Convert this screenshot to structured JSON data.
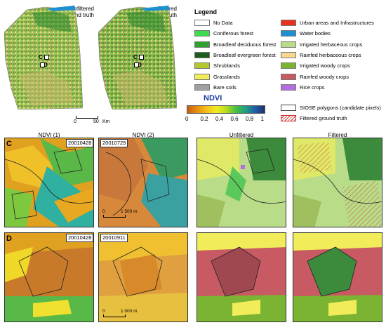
{
  "overview": {
    "unfiltered_title": "Unfiltered ground truth",
    "filtered_title": "Filtered ground truth",
    "point_c": "C",
    "point_d": "D",
    "scale_zero": "0",
    "scale_fifty": "50",
    "scale_unit": "Km"
  },
  "legend": {
    "title": "Legend",
    "items_left": [
      {
        "label": "No Data",
        "color": "#ffffff"
      },
      {
        "label": "Coniferous forest",
        "color": "#3cdc4c"
      },
      {
        "label": "Broadleaf deciduous forest",
        "color": "#2ea02e"
      },
      {
        "label": "Broadleaf evergreen forest",
        "color": "#1d5c1d"
      },
      {
        "label": "Shrublands",
        "color": "#b4c82a"
      },
      {
        "label": "Grasslands",
        "color": "#f0ec5a"
      },
      {
        "label": "Bare soils",
        "color": "#a0a0a0"
      }
    ],
    "items_right": [
      {
        "label": "Urban areas and Infrastructures",
        "color": "#e8301c"
      },
      {
        "label": "Water bodies",
        "color": "#1f8fd0"
      },
      {
        "label": "Irrigated herbaceous crops",
        "color": "#b8dc88"
      },
      {
        "label": "Rainfed herbaceous crops",
        "color": "#f8d890"
      },
      {
        "label": "Irrigated woody crops",
        "color": "#7ab432"
      },
      {
        "label": "Rainfed woody crops",
        "color": "#c85a64"
      },
      {
        "label": "Rice crops",
        "color": "#b46ee0"
      }
    ],
    "siose_label": "SIOSE polygons (candidate pixels)",
    "filtered_gt_label": "Filtered ground truth"
  },
  "ndvi": {
    "title": "NDVI",
    "ticks": [
      "0",
      "0.2",
      "0.4",
      "0.6",
      "0.8",
      "1"
    ]
  },
  "columns": [
    "NDVI (1)",
    "NDVI (2)",
    "Unfiltered",
    "Filtered"
  ],
  "rows": [
    {
      "letter": "C",
      "date1": "20010428",
      "date2": "20010725",
      "scale_zero": "0",
      "scale_len": "1 500 m"
    },
    {
      "letter": "D",
      "date1": "20010428",
      "date2": "20010911",
      "scale_zero": "0",
      "scale_len": "1 000 m"
    }
  ]
}
